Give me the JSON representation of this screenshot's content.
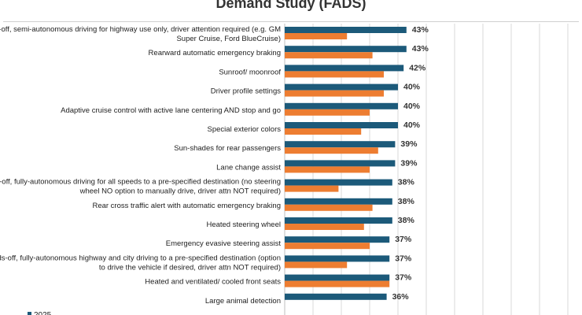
{
  "chart_data": {
    "type": "bar",
    "orientation": "horizontal",
    "title": "Demand Study (FADS)",
    "categories": [
      [
        "Hands-off, semi-autonomous driving for highway use only, driver attention required (e.g. GM",
        "Super Cruise, Ford BlueCruise)"
      ],
      [
        "Rearward automatic emergency braking"
      ],
      [
        "Sunroof/ moonroof"
      ],
      [
        "Driver profile settings"
      ],
      [
        "Adaptive cruise control with active lane centering AND stop and go"
      ],
      [
        "Special exterior colors"
      ],
      [
        "Sun-shades for rear passengers"
      ],
      [
        "Lane change assist"
      ],
      [
        "Hands-off, fully-autonomous driving for all speeds to a pre-specified destination (no steering",
        "wheel NO option to manually drive, driver attn NOT required)"
      ],
      [
        "Rear cross traffic alert with automatic emergency braking"
      ],
      [
        "Heated steering wheel"
      ],
      [
        "Emergency evasive steering assist"
      ],
      [
        "Hands-off, fully-autonomous highway and city driving to a pre-specified destination (option",
        "to drive the vehicle if desired, driver attn NOT required)"
      ],
      [
        "Heated and ventilated/ cooled front seats"
      ],
      [
        "Large animal detection"
      ]
    ],
    "series": [
      {
        "name": "2025",
        "color": "#1c5a7a",
        "values": [
          43,
          43,
          42,
          40,
          40,
          40,
          39,
          39,
          38,
          38,
          38,
          37,
          37,
          37,
          36
        ],
        "data_labels": [
          "43%",
          "43%",
          "42%",
          "40%",
          "40%",
          "40%",
          "39%",
          "39%",
          "38%",
          "38%",
          "38%",
          "37%",
          "37%",
          "37%",
          "36%"
        ]
      },
      {
        "color": "#ed7d31",
        "values": [
          22,
          31,
          35,
          35,
          30,
          27,
          33,
          30,
          19,
          31,
          28,
          30,
          22,
          37,
          0
        ]
      }
    ],
    "xlim": [
      0,
      100
    ],
    "value_format": "percent",
    "legend_position": "bottom-left",
    "grid": true
  }
}
